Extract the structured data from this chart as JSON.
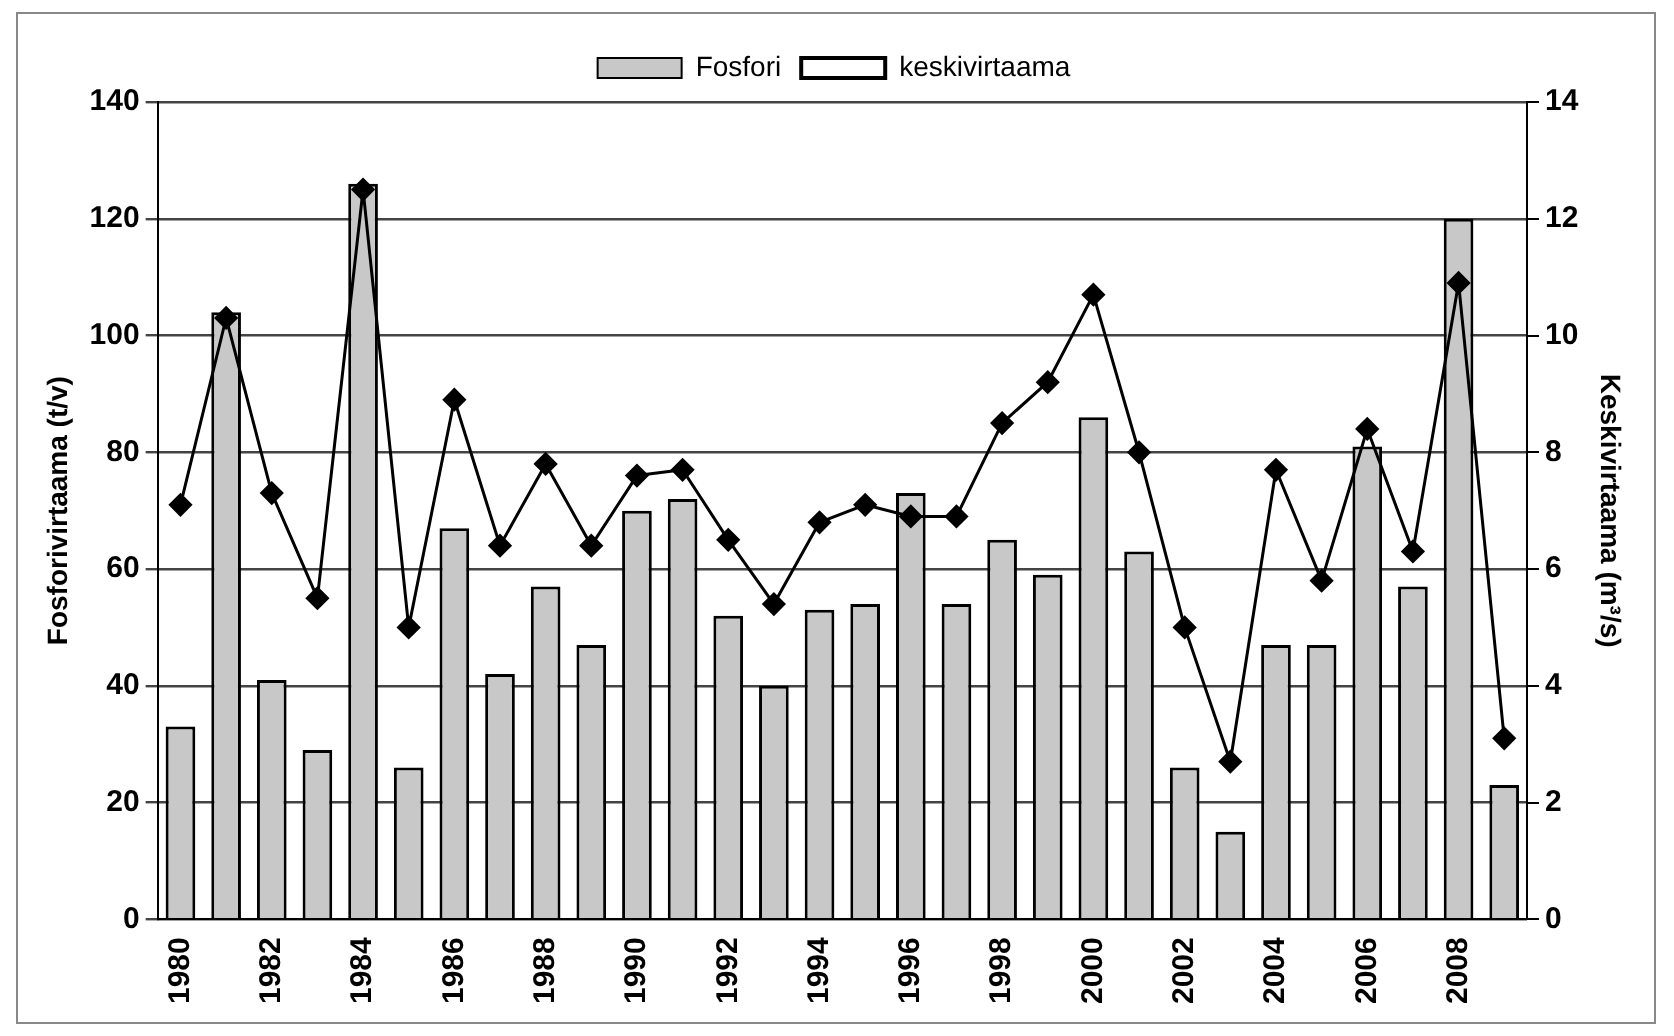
{
  "chart_data": {
    "type": "bar",
    "categories": [
      "1980",
      null,
      "1982",
      null,
      "1984",
      null,
      "1986",
      null,
      "1988",
      null,
      "1990",
      null,
      "1992",
      null,
      "1994",
      null,
      "1996",
      null,
      "1998",
      null,
      "2000",
      null,
      "2002",
      null,
      "2004",
      null,
      "2006",
      null,
      "2008",
      null
    ],
    "series": [
      {
        "name": "Fosfori",
        "color": "#c8c8c8",
        "values": [
          33,
          104,
          41,
          29,
          126,
          26,
          67,
          42,
          57,
          47,
          70,
          72,
          52,
          40,
          53,
          54,
          73,
          54,
          65,
          59,
          86,
          63,
          26,
          15,
          47,
          47,
          81,
          57,
          120,
          23
        ]
      },
      {
        "name": "keskivirtaama",
        "type": "line",
        "axis": "y2",
        "color": "#000000",
        "values": [
          7.1,
          10.3,
          7.3,
          5.5,
          12.5,
          5.0,
          8.9,
          6.4,
          7.8,
          6.4,
          7.6,
          7.7,
          6.5,
          5.4,
          6.8,
          7.1,
          6.9,
          6.9,
          8.5,
          9.2,
          10.7,
          8.0,
          5.0,
          2.7,
          7.7,
          5.8,
          8.4,
          6.3,
          10.9,
          3.1
        ]
      }
    ],
    "ylabel": "Fosforivirtaama (t/v)",
    "y2label": "Keskivirtaama (m³/s)",
    "ylim": [
      0,
      140
    ],
    "yticks": [
      0,
      20,
      40,
      60,
      80,
      100,
      120,
      140
    ],
    "y2lim": [
      0,
      14
    ],
    "y2ticks": [
      0,
      2,
      4,
      6,
      8,
      10,
      12,
      14
    ],
    "grid": "y",
    "legend": "top",
    "marker": "diamond",
    "line_style": "solid"
  }
}
